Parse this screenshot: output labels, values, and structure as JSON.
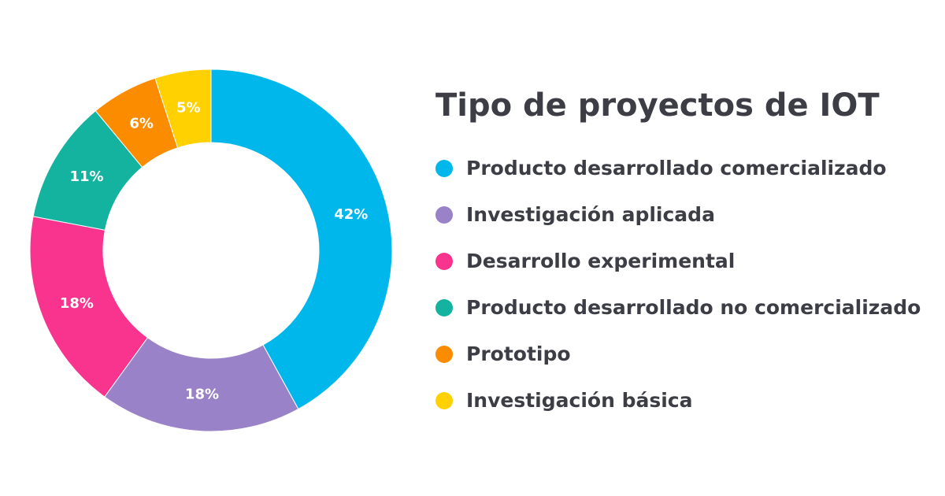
{
  "chart_data": {
    "type": "pie",
    "title": "Tipo de proyectos de IOT",
    "unit": "%",
    "categories": [
      "Producto desarrollado comercializado",
      "Investigación aplicada",
      "Desarrollo experimental",
      "Producto desarrollado no comercializado",
      "Prototipo",
      "Investigación básica"
    ],
    "values": [
      42,
      18,
      18,
      11,
      6,
      5
    ],
    "labels": [
      "42%",
      "18%",
      "18%",
      "11%",
      "6%",
      "5%"
    ],
    "colors": [
      "#00b7ec",
      "#9a82c8",
      "#f8348f",
      "#13b3a0",
      "#fb8c00",
      "#ffd100"
    ],
    "donut": true,
    "start_angle": "top (12 o'clock)",
    "direction": "clockwise",
    "legend_position": "right"
  }
}
